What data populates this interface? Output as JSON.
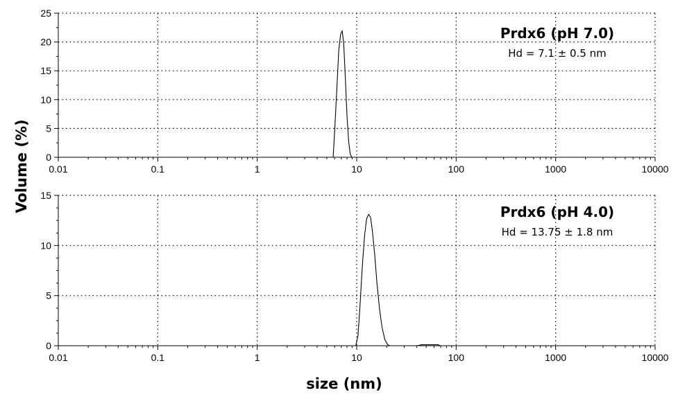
{
  "chart_data": {
    "type": "line",
    "ylabel": "Volume (%)",
    "xlabel": "size (nm)",
    "x_scale": "log",
    "x_ticks": [
      0.01,
      0.1,
      1,
      10,
      100,
      1000,
      10000
    ],
    "x_tick_labels": [
      "0.01",
      "0.1",
      "1",
      "10",
      "100",
      "1000",
      "10000"
    ],
    "grid": true,
    "panels": [
      {
        "title": "Prdx6 (pH 7.0)",
        "subtitle": "Hd = 7.1 ± 0.5 nm",
        "xlim": [
          0.01,
          10000
        ],
        "ylim": [
          0,
          25
        ],
        "y_ticks": [
          0,
          5,
          10,
          15,
          20,
          25
        ],
        "y_tick_labels": [
          "0",
          "5",
          "10",
          "15",
          "20",
          "25"
        ],
        "series": [
          {
            "x": [
              5.8,
              6.0,
              6.3,
              6.6,
              6.9,
              7.15,
              7.4,
              7.7,
              8.0,
              8.3,
              8.6,
              8.9
            ],
            "y": [
              0,
              4.5,
              11.5,
              18.5,
              21.4,
              21.9,
              19.8,
              13.5,
              7.0,
              2.8,
              0.6,
              0
            ]
          }
        ]
      },
      {
        "title": "Prdx6 (pH 4.0)",
        "subtitle": "Hd = 13.75 ± 1.8 nm",
        "xlim": [
          0.01,
          10000
        ],
        "ylim": [
          0,
          15
        ],
        "y_ticks": [
          0,
          5,
          10,
          15
        ],
        "y_tick_labels": [
          "0",
          "5",
          "10",
          "15"
        ],
        "series": [
          {
            "x": [
              9.8,
              10.3,
              10.8,
              11.4,
              12.0,
              12.6,
              13.2,
              13.8,
              14.4,
              15.2,
              16.0,
              17.0,
              18.0,
              19.2,
              20.5,
              21.5,
              40,
              45,
              55,
              65,
              70
            ],
            "y": [
              0,
              1.0,
              4.0,
              8.0,
              11.0,
              12.7,
              13.1,
              12.8,
              11.4,
              9.0,
              6.2,
              3.6,
              1.8,
              0.6,
              0.1,
              0,
              0,
              0.1,
              0.1,
              0.1,
              0
            ]
          }
        ]
      }
    ]
  }
}
